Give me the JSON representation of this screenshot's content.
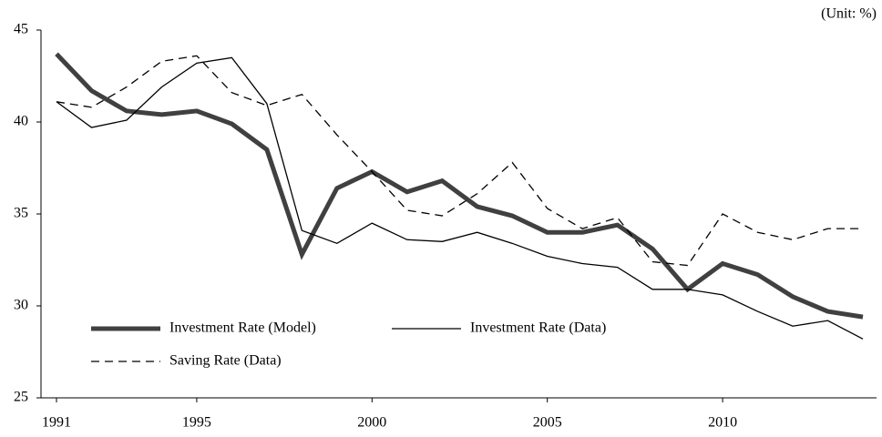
{
  "chart_data": {
    "type": "line",
    "annotation": "(Unit: %)",
    "x": [
      1991,
      1992,
      1993,
      1994,
      1995,
      1996,
      1997,
      1998,
      1999,
      2000,
      2001,
      2002,
      2003,
      2004,
      2005,
      2006,
      2007,
      2008,
      2009,
      2010,
      2011,
      2012,
      2013,
      2014
    ],
    "xlim": [
      1991,
      2014
    ],
    "xticks": [
      1991,
      1995,
      2000,
      2005,
      2010
    ],
    "ylim": [
      25,
      45
    ],
    "yticks": [
      25,
      30,
      35,
      40,
      45
    ],
    "grid": false,
    "legend": "lower-left",
    "series": [
      {
        "name": "Investment Rate (Model)",
        "color": "#404040",
        "line_style": "solid",
        "line_width": 5,
        "values": [
          43.7,
          41.7,
          40.6,
          40.4,
          40.6,
          39.9,
          38.5,
          32.8,
          36.4,
          37.3,
          36.2,
          36.8,
          35.4,
          34.9,
          34.0,
          34.0,
          34.4,
          33.1,
          30.9,
          32.3,
          31.7,
          30.5,
          29.7,
          29.4
        ]
      },
      {
        "name": "Investment Rate (Data)",
        "color": "#000000",
        "line_style": "solid",
        "line_width": 1.3,
        "values": [
          41.1,
          39.7,
          40.1,
          41.9,
          43.2,
          43.5,
          41.0,
          34.1,
          33.4,
          34.5,
          33.6,
          33.5,
          34.0,
          33.4,
          32.7,
          32.3,
          32.1,
          30.9,
          30.9,
          30.6,
          29.7,
          28.9,
          29.2,
          28.2
        ]
      },
      {
        "name": "Saving Rate (Data)",
        "color": "#000000",
        "line_style": "dashed",
        "line_width": 1.3,
        "values": [
          41.1,
          40.8,
          41.9,
          43.3,
          43.6,
          41.6,
          40.9,
          41.5,
          39.3,
          37.3,
          35.2,
          34.9,
          36.1,
          37.8,
          35.3,
          34.2,
          34.8,
          32.4,
          32.2,
          35.0,
          34.0,
          33.6,
          34.2,
          34.2
        ]
      }
    ]
  }
}
